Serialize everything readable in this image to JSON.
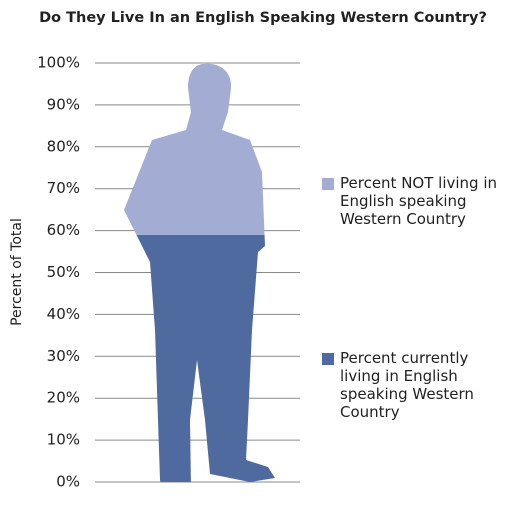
{
  "chart_data": {
    "type": "bar",
    "stacked": true,
    "title": "Do They Live In an English Speaking Western Country?",
    "ylabel": "Percent of Total",
    "ylim": [
      0,
      100
    ],
    "yticks": [
      {
        "value": 0,
        "label": "0%"
      },
      {
        "value": 10,
        "label": "10%"
      },
      {
        "value": 20,
        "label": "20%"
      },
      {
        "value": 30,
        "label": "30%"
      },
      {
        "value": 40,
        "label": "40%"
      },
      {
        "value": 50,
        "label": "50%"
      },
      {
        "value": 60,
        "label": "60%"
      },
      {
        "value": 70,
        "label": "70%"
      },
      {
        "value": 80,
        "label": "80%"
      },
      {
        "value": 90,
        "label": "90%"
      },
      {
        "value": 100,
        "label": "100%"
      }
    ],
    "grid": true,
    "series": [
      {
        "name": "Percent currently living in English speaking Western Country",
        "color": "#4f6a9e",
        "values": [
          59
        ]
      },
      {
        "name": "Percent NOT living in English speaking Western Country",
        "color": "#a3acd2",
        "values": [
          41
        ]
      }
    ]
  }
}
